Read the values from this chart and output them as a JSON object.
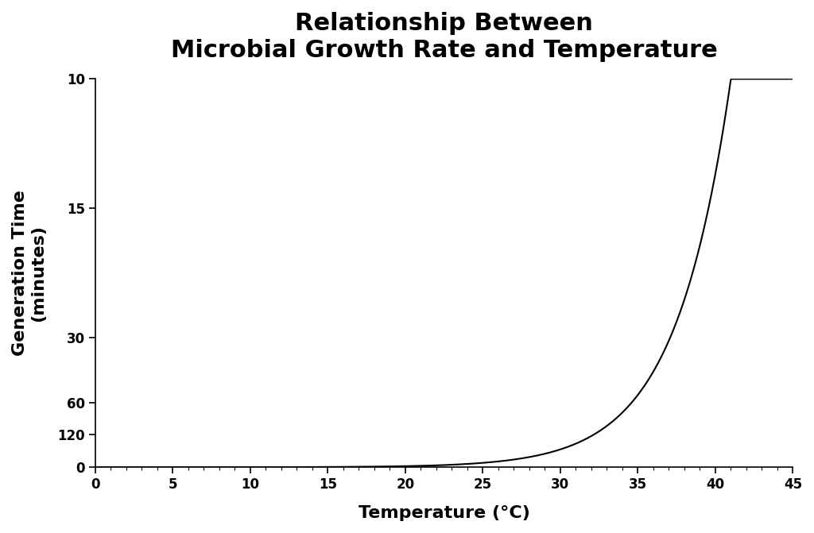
{
  "title_line1": "Relationship Between",
  "title_line2": "Microbial Growth Rate and Temperature",
  "xlabel": "Temperature (°C)",
  "ylabel": "Generation Time\n(minutes)",
  "background_color": "#ffffff",
  "line_color": "#000000",
  "title_fontsize": 22,
  "axis_label_fontsize": 16,
  "tick_label_fontsize": 12,
  "x_min": 0,
  "x_max": 45,
  "x_ticks": [
    0,
    5,
    10,
    15,
    20,
    25,
    30,
    35,
    40,
    45
  ],
  "y_tick_pos": [
    0.0,
    0.008333,
    0.016667,
    0.033333,
    0.066667,
    0.1
  ],
  "y_tick_labels": [
    "0",
    "120",
    "60",
    "30",
    "15",
    "10"
  ],
  "y_max": 0.1,
  "curve_k": 0.28,
  "curve_T0": 10.0,
  "curve_T_end": 41.0,
  "curve_points": 1000
}
